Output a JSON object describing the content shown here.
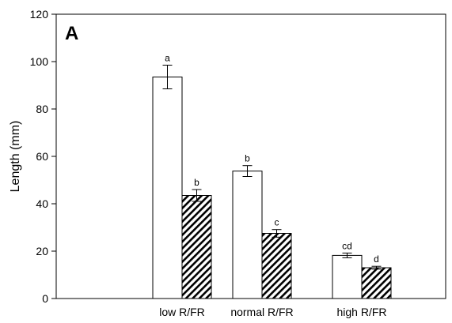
{
  "chart_data": {
    "type": "bar",
    "panel_label": "A",
    "ylabel": "Length (mm)",
    "xlabel": "",
    "ylim": [
      0,
      120
    ],
    "yticks": [
      0,
      20,
      40,
      60,
      80,
      100,
      120
    ],
    "grid": false,
    "legend": "none",
    "categories": [
      "low R/FR",
      "normal R/FR",
      "high R/FR"
    ],
    "series": [
      {
        "fill": "open",
        "values": [
          93.5,
          53.8,
          18.2
        ],
        "errors": [
          5.0,
          2.3,
          1.0
        ],
        "letters": [
          "a",
          "b",
          "cd"
        ]
      },
      {
        "fill": "hatched",
        "values": [
          43.5,
          27.5,
          13.0
        ],
        "errors": [
          2.5,
          1.6,
          0.6
        ],
        "letters": [
          "b",
          "c",
          "d"
        ]
      }
    ]
  }
}
